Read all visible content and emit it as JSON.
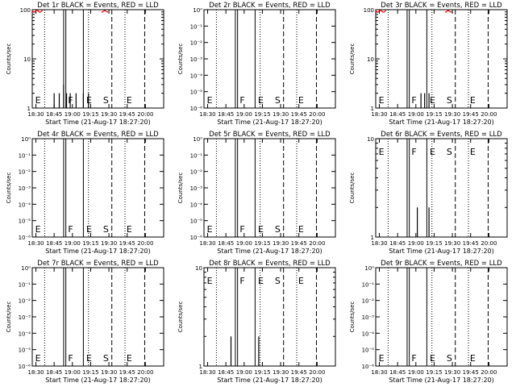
{
  "figure": {
    "xlabel": "Start Time (21-Aug-17 18:27:20)",
    "ylabel": "Counts/sec",
    "x_tick_labels": [
      "18:30",
      "18:45",
      "19:00",
      "19:15",
      "19:30",
      "19:45",
      "20:00"
    ],
    "colors": {
      "events": "#000000",
      "lld": "#ff0000"
    }
  },
  "chart_data": [
    {
      "type": "line",
      "title": "Det 1r BLACK = Events, RED = LLD",
      "scale": "log",
      "ylim": [
        1,
        100
      ],
      "y_tick_labels": [
        "1",
        "10",
        "100"
      ],
      "annotations": [
        "E",
        "F",
        "E",
        "S",
        "E"
      ],
      "has_lld": true,
      "event_counts": [
        [
          18.75,
          2
        ],
        [
          18.82,
          2
        ],
        [
          18.88,
          3
        ],
        [
          18.92,
          2
        ],
        [
          18.97,
          2
        ],
        [
          19.05,
          2
        ],
        [
          19.15,
          2
        ],
        [
          19.22,
          2
        ]
      ]
    },
    {
      "type": "line",
      "title": "Det 2r BLACK = Events, RED = LLD",
      "scale": "log",
      "ylim": [
        1e-06,
        1
      ],
      "y_tick_labels": [
        "10⁻⁶",
        "10⁻⁵",
        "10⁻⁴",
        "10⁻³",
        "10⁻²",
        "10⁻¹",
        "10⁰"
      ],
      "annotations": [
        "E",
        "F",
        "E",
        "S",
        "E"
      ],
      "has_lld": false,
      "event_counts": []
    },
    {
      "type": "line",
      "title": "Det 3r BLACK = Events, RED = LLD",
      "scale": "log",
      "ylim": [
        1,
        100
      ],
      "y_tick_labels": [
        "1",
        "10",
        "100"
      ],
      "annotations": [
        "E",
        "F",
        "E",
        "S",
        "E"
      ],
      "has_lld": true,
      "event_counts": [
        [
          19.07,
          2
        ],
        [
          19.12,
          2
        ],
        [
          19.18,
          2
        ]
      ]
    },
    {
      "type": "line",
      "title": "Det 4r BLACK = Events, RED = LLD",
      "scale": "log",
      "ylim": [
        1e-06,
        1
      ],
      "y_tick_labels": [
        "10⁻⁶",
        "10⁻⁵",
        "10⁻⁴",
        "10⁻³",
        "10⁻²",
        "10⁻¹",
        "10⁰"
      ],
      "annotations": [
        "E",
        "F",
        "E",
        "S",
        "E"
      ],
      "has_lld": false,
      "event_counts": []
    },
    {
      "type": "line",
      "title": "Det 5r BLACK = Events, RED = LLD",
      "scale": "log",
      "ylim": [
        1e-06,
        1
      ],
      "y_tick_labels": [
        "10⁻⁶",
        "10⁻⁵",
        "10⁻⁴",
        "10⁻³",
        "10⁻²",
        "10⁻¹",
        "10⁰"
      ],
      "annotations": [
        "E",
        "F",
        "E",
        "S",
        "E"
      ],
      "has_lld": false,
      "event_counts": []
    },
    {
      "type": "line",
      "title": "Det 6r BLACK = Events, RED = LLD",
      "scale": "log",
      "ylim": [
        1,
        10
      ],
      "y_tick_labels": [
        "1",
        "10"
      ],
      "annotations": [
        "E",
        "F",
        "E",
        "S",
        "E"
      ],
      "has_lld": false,
      "event_counts": [
        [
          19.02,
          2
        ],
        [
          19.18,
          2
        ]
      ]
    },
    {
      "type": "line",
      "title": "Det 7r BLACK = Events, RED = LLD",
      "scale": "log",
      "ylim": [
        1e-06,
        1
      ],
      "y_tick_labels": [
        "10⁻⁶",
        "10⁻⁵",
        "10⁻⁴",
        "10⁻³",
        "10⁻²",
        "10⁻¹",
        "10⁰"
      ],
      "annotations": [
        "E",
        "F",
        "E",
        "S",
        "E"
      ],
      "has_lld": false,
      "event_counts": []
    },
    {
      "type": "line",
      "title": "Det 8r BLACK = Events, RED = LLD",
      "scale": "log",
      "ylim": [
        1,
        10
      ],
      "y_tick_labels": [
        "1",
        "10"
      ],
      "annotations": [
        "E",
        "F",
        "E",
        "S",
        "E"
      ],
      "has_lld": false,
      "event_counts": [
        [
          18.82,
          2
        ],
        [
          19.2,
          2
        ]
      ]
    },
    {
      "type": "line",
      "title": "Det 9r BLACK = Events, RED = LLD",
      "scale": "log",
      "ylim": [
        1e-06,
        1
      ],
      "y_tick_labels": [
        "10⁻⁶",
        "10⁻⁵",
        "10⁻⁴",
        "10⁻³",
        "10⁻²",
        "10⁻¹",
        "10⁰"
      ],
      "annotations": [
        "E",
        "F",
        "E",
        "S",
        "E"
      ],
      "has_lld": false,
      "event_counts": []
    }
  ]
}
